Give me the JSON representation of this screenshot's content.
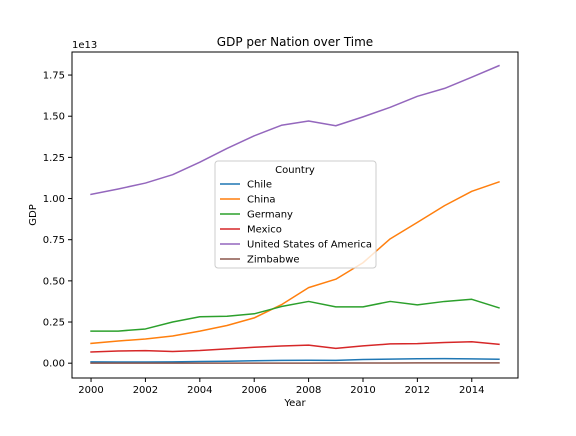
{
  "chart_data": {
    "type": "line",
    "title": "GDP per Nation over Time",
    "xlabel": "Year",
    "ylabel": "GDP",
    "y_multiplier_label": "1e13",
    "xlim": [
      1999.3,
      2015.7
    ],
    "ylim": [
      -0.09,
      1.89
    ],
    "y_unit_scale": 10000000000000.0,
    "x_ticks": [
      2000,
      2002,
      2004,
      2006,
      2008,
      2010,
      2012,
      2014
    ],
    "x_tick_labels": [
      "2000",
      "2002",
      "2004",
      "2006",
      "2008",
      "2010",
      "2012",
      "2014"
    ],
    "y_ticks": [
      0.0,
      0.25,
      0.5,
      0.75,
      1.0,
      1.25,
      1.5,
      1.75
    ],
    "y_tick_labels": [
      "0.00",
      "0.25",
      "0.50",
      "0.75",
      "1.00",
      "1.25",
      "1.50",
      "1.75"
    ],
    "grid": false,
    "legend": {
      "title": "Country",
      "placement": "center"
    },
    "x": [
      2000,
      2001,
      2002,
      2003,
      2004,
      2005,
      2006,
      2007,
      2008,
      2009,
      2010,
      2011,
      2012,
      2013,
      2014,
      2015
    ],
    "series": [
      {
        "name": "Chile",
        "color": "#1f77b4",
        "values": [
          0.008,
          0.007,
          0.007,
          0.008,
          0.01,
          0.012,
          0.015,
          0.017,
          0.018,
          0.017,
          0.022,
          0.025,
          0.027,
          0.028,
          0.026,
          0.024
        ]
      },
      {
        "name": "China",
        "color": "#ff7f0e",
        "values": [
          0.12,
          0.135,
          0.147,
          0.165,
          0.195,
          0.229,
          0.275,
          0.355,
          0.459,
          0.51,
          0.61,
          0.755,
          0.855,
          0.957,
          1.044,
          1.101
        ]
      },
      {
        "name": "Germany",
        "color": "#2ca02c",
        "values": [
          0.195,
          0.195,
          0.208,
          0.25,
          0.282,
          0.285,
          0.3,
          0.344,
          0.375,
          0.342,
          0.342,
          0.375,
          0.354,
          0.375,
          0.388,
          0.336
        ]
      },
      {
        "name": "Mexico",
        "color": "#d62728",
        "values": [
          0.068,
          0.074,
          0.076,
          0.071,
          0.077,
          0.087,
          0.097,
          0.104,
          0.11,
          0.09,
          0.105,
          0.117,
          0.119,
          0.126,
          0.13,
          0.115
        ]
      },
      {
        "name": "United States of America",
        "color": "#9467bd",
        "values": [
          1.025,
          1.058,
          1.094,
          1.145,
          1.221,
          1.304,
          1.381,
          1.445,
          1.471,
          1.442,
          1.496,
          1.554,
          1.621,
          1.669,
          1.737,
          1.807
        ]
      },
      {
        "name": "Zimbabwe",
        "color": "#8c564b",
        "values": [
          0.0007,
          0.0007,
          0.0006,
          0.0006,
          0.0006,
          0.0006,
          0.0005,
          0.0005,
          0.0004,
          0.0008,
          0.001,
          0.0014,
          0.0017,
          0.0019,
          0.0019,
          0.002
        ]
      }
    ]
  }
}
